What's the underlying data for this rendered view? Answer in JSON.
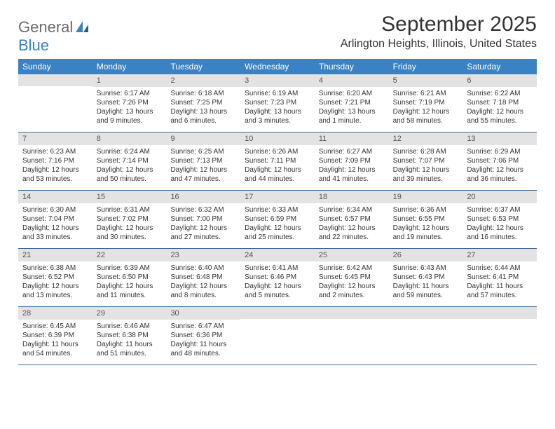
{
  "logo": {
    "text_general": "General",
    "text_blue": "Blue"
  },
  "title": "September 2025",
  "location": "Arlington Heights, Illinois, United States",
  "colors": {
    "header_bg": "#3a82c4",
    "header_text": "#ffffff",
    "daynum_bg": "#e3e3e3",
    "border": "#3a6a9a",
    "body_text": "#333333",
    "logo_gray": "#6b6b6b"
  },
  "day_names": [
    "Sunday",
    "Monday",
    "Tuesday",
    "Wednesday",
    "Thursday",
    "Friday",
    "Saturday"
  ],
  "weeks": [
    [
      {
        "n": "",
        "sunrise": "",
        "sunset": "",
        "daylight": ""
      },
      {
        "n": "1",
        "sunrise": "Sunrise: 6:17 AM",
        "sunset": "Sunset: 7:26 PM",
        "daylight": "Daylight: 13 hours and 9 minutes."
      },
      {
        "n": "2",
        "sunrise": "Sunrise: 6:18 AM",
        "sunset": "Sunset: 7:25 PM",
        "daylight": "Daylight: 13 hours and 6 minutes."
      },
      {
        "n": "3",
        "sunrise": "Sunrise: 6:19 AM",
        "sunset": "Sunset: 7:23 PM",
        "daylight": "Daylight: 13 hours and 3 minutes."
      },
      {
        "n": "4",
        "sunrise": "Sunrise: 6:20 AM",
        "sunset": "Sunset: 7:21 PM",
        "daylight": "Daylight: 13 hours and 1 minute."
      },
      {
        "n": "5",
        "sunrise": "Sunrise: 6:21 AM",
        "sunset": "Sunset: 7:19 PM",
        "daylight": "Daylight: 12 hours and 58 minutes."
      },
      {
        "n": "6",
        "sunrise": "Sunrise: 6:22 AM",
        "sunset": "Sunset: 7:18 PM",
        "daylight": "Daylight: 12 hours and 55 minutes."
      }
    ],
    [
      {
        "n": "7",
        "sunrise": "Sunrise: 6:23 AM",
        "sunset": "Sunset: 7:16 PM",
        "daylight": "Daylight: 12 hours and 53 minutes."
      },
      {
        "n": "8",
        "sunrise": "Sunrise: 6:24 AM",
        "sunset": "Sunset: 7:14 PM",
        "daylight": "Daylight: 12 hours and 50 minutes."
      },
      {
        "n": "9",
        "sunrise": "Sunrise: 6:25 AM",
        "sunset": "Sunset: 7:13 PM",
        "daylight": "Daylight: 12 hours and 47 minutes."
      },
      {
        "n": "10",
        "sunrise": "Sunrise: 6:26 AM",
        "sunset": "Sunset: 7:11 PM",
        "daylight": "Daylight: 12 hours and 44 minutes."
      },
      {
        "n": "11",
        "sunrise": "Sunrise: 6:27 AM",
        "sunset": "Sunset: 7:09 PM",
        "daylight": "Daylight: 12 hours and 41 minutes."
      },
      {
        "n": "12",
        "sunrise": "Sunrise: 6:28 AM",
        "sunset": "Sunset: 7:07 PM",
        "daylight": "Daylight: 12 hours and 39 minutes."
      },
      {
        "n": "13",
        "sunrise": "Sunrise: 6:29 AM",
        "sunset": "Sunset: 7:06 PM",
        "daylight": "Daylight: 12 hours and 36 minutes."
      }
    ],
    [
      {
        "n": "14",
        "sunrise": "Sunrise: 6:30 AM",
        "sunset": "Sunset: 7:04 PM",
        "daylight": "Daylight: 12 hours and 33 minutes."
      },
      {
        "n": "15",
        "sunrise": "Sunrise: 6:31 AM",
        "sunset": "Sunset: 7:02 PM",
        "daylight": "Daylight: 12 hours and 30 minutes."
      },
      {
        "n": "16",
        "sunrise": "Sunrise: 6:32 AM",
        "sunset": "Sunset: 7:00 PM",
        "daylight": "Daylight: 12 hours and 27 minutes."
      },
      {
        "n": "17",
        "sunrise": "Sunrise: 6:33 AM",
        "sunset": "Sunset: 6:59 PM",
        "daylight": "Daylight: 12 hours and 25 minutes."
      },
      {
        "n": "18",
        "sunrise": "Sunrise: 6:34 AM",
        "sunset": "Sunset: 6:57 PM",
        "daylight": "Daylight: 12 hours and 22 minutes."
      },
      {
        "n": "19",
        "sunrise": "Sunrise: 6:36 AM",
        "sunset": "Sunset: 6:55 PM",
        "daylight": "Daylight: 12 hours and 19 minutes."
      },
      {
        "n": "20",
        "sunrise": "Sunrise: 6:37 AM",
        "sunset": "Sunset: 6:53 PM",
        "daylight": "Daylight: 12 hours and 16 minutes."
      }
    ],
    [
      {
        "n": "21",
        "sunrise": "Sunrise: 6:38 AM",
        "sunset": "Sunset: 6:52 PM",
        "daylight": "Daylight: 12 hours and 13 minutes."
      },
      {
        "n": "22",
        "sunrise": "Sunrise: 6:39 AM",
        "sunset": "Sunset: 6:50 PM",
        "daylight": "Daylight: 12 hours and 11 minutes."
      },
      {
        "n": "23",
        "sunrise": "Sunrise: 6:40 AM",
        "sunset": "Sunset: 6:48 PM",
        "daylight": "Daylight: 12 hours and 8 minutes."
      },
      {
        "n": "24",
        "sunrise": "Sunrise: 6:41 AM",
        "sunset": "Sunset: 6:46 PM",
        "daylight": "Daylight: 12 hours and 5 minutes."
      },
      {
        "n": "25",
        "sunrise": "Sunrise: 6:42 AM",
        "sunset": "Sunset: 6:45 PM",
        "daylight": "Daylight: 12 hours and 2 minutes."
      },
      {
        "n": "26",
        "sunrise": "Sunrise: 6:43 AM",
        "sunset": "Sunset: 6:43 PM",
        "daylight": "Daylight: 11 hours and 59 minutes."
      },
      {
        "n": "27",
        "sunrise": "Sunrise: 6:44 AM",
        "sunset": "Sunset: 6:41 PM",
        "daylight": "Daylight: 11 hours and 57 minutes."
      }
    ],
    [
      {
        "n": "28",
        "sunrise": "Sunrise: 6:45 AM",
        "sunset": "Sunset: 6:39 PM",
        "daylight": "Daylight: 11 hours and 54 minutes."
      },
      {
        "n": "29",
        "sunrise": "Sunrise: 6:46 AM",
        "sunset": "Sunset: 6:38 PM",
        "daylight": "Daylight: 11 hours and 51 minutes."
      },
      {
        "n": "30",
        "sunrise": "Sunrise: 6:47 AM",
        "sunset": "Sunset: 6:36 PM",
        "daylight": "Daylight: 11 hours and 48 minutes."
      },
      {
        "n": "",
        "sunrise": "",
        "sunset": "",
        "daylight": ""
      },
      {
        "n": "",
        "sunrise": "",
        "sunset": "",
        "daylight": ""
      },
      {
        "n": "",
        "sunrise": "",
        "sunset": "",
        "daylight": ""
      },
      {
        "n": "",
        "sunrise": "",
        "sunset": "",
        "daylight": ""
      }
    ]
  ]
}
